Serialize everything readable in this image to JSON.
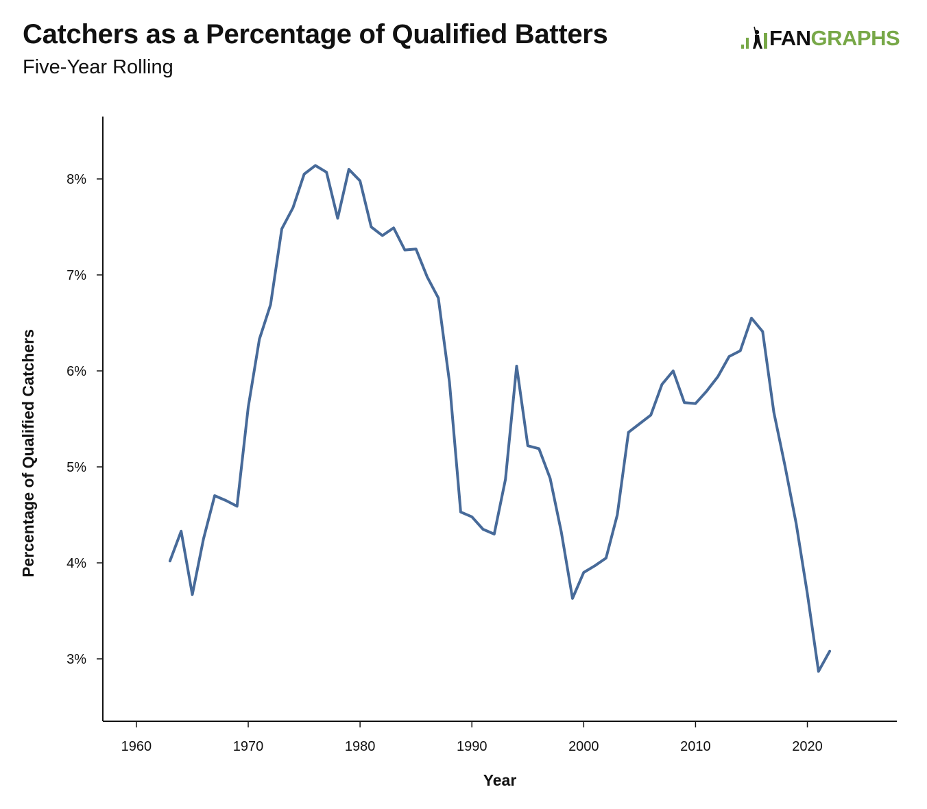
{
  "header": {
    "title": "Catchers as a Percentage of Qualified Batters",
    "subtitle": "Five-Year Rolling"
  },
  "logo": {
    "text_fan": "FAN",
    "text_graphs": "GRAPHS",
    "brand_green": "#78a848"
  },
  "colors": {
    "line": "#476a99",
    "axis": "#111111"
  },
  "chart_data": {
    "type": "line",
    "xlabel": "Year",
    "ylabel": "Percentage of Qualified Catchers",
    "xlim": [
      1957,
      2028
    ],
    "ylim": [
      2.35,
      8.65
    ],
    "x_ticks": [
      1960,
      1970,
      1980,
      1990,
      2000,
      2010,
      2020
    ],
    "y_ticks": [
      3,
      4,
      5,
      6,
      7,
      8
    ],
    "y_tick_suffix": "%",
    "grid": false,
    "legend": "none",
    "series": [
      {
        "x": [
          1963,
          1964,
          1965,
          1966,
          1967,
          1968,
          1969,
          1970,
          1971,
          1972,
          1973,
          1974,
          1975,
          1976,
          1977,
          1978,
          1979,
          1980,
          1981,
          1982,
          1983,
          1984,
          1985,
          1986,
          1987,
          1988,
          1989,
          1990,
          1991,
          1992,
          1993,
          1994,
          1995,
          1996,
          1997,
          1998,
          1999,
          2000,
          2001,
          2002,
          2003,
          2004,
          2005,
          2006,
          2007,
          2008,
          2009,
          2010,
          2011,
          2012,
          2013,
          2014,
          2015,
          2016,
          2017,
          2018,
          2019,
          2020,
          2021,
          2022
        ],
        "values": [
          4.02,
          4.33,
          3.67,
          4.25,
          4.7,
          4.65,
          4.59,
          5.62,
          6.33,
          6.69,
          7.48,
          7.7,
          8.05,
          8.14,
          8.07,
          7.59,
          8.1,
          7.98,
          7.5,
          7.41,
          7.49,
          7.26,
          7.27,
          6.98,
          6.76,
          5.88,
          4.53,
          4.48,
          4.35,
          4.3,
          4.87,
          6.05,
          5.22,
          5.19,
          4.88,
          4.32,
          3.63,
          3.9,
          3.97,
          4.05,
          4.5,
          5.36,
          5.45,
          5.54,
          5.86,
          6.0,
          5.67,
          5.66,
          5.79,
          5.94,
          6.15,
          6.21,
          6.55,
          6.41,
          5.57,
          5.01,
          4.41,
          3.68,
          2.87,
          3.08
        ]
      }
    ]
  }
}
